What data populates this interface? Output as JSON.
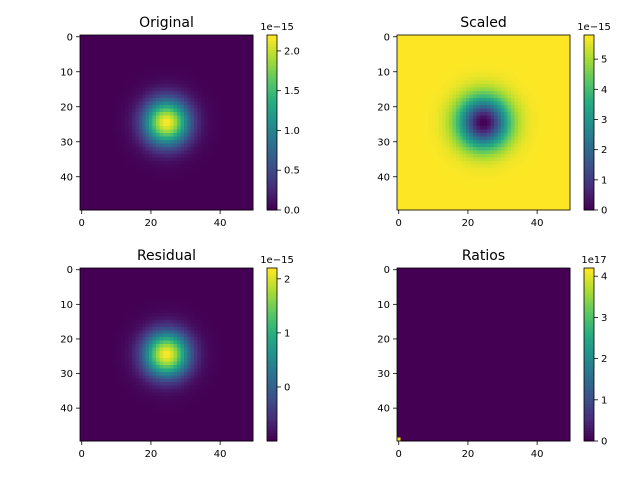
{
  "chart_data": [
    {
      "type": "heatmap",
      "title": "Original",
      "colormap": "viridis",
      "image": {
        "shape": [
          50,
          50
        ],
        "pattern": "gaussian",
        "center": [
          24.5,
          24.5
        ],
        "sigma": 4.5
      },
      "x_ticks": [
        0,
        20,
        40
      ],
      "y_ticks": [
        0,
        10,
        20,
        30,
        40
      ],
      "colorbar": {
        "vmin": 0.0,
        "vmax": 2.2,
        "ticks": [
          0.0,
          0.5,
          1.0,
          1.5,
          2.0
        ],
        "tick_labels": [
          "0.0",
          "0.5",
          "1.0",
          "1.5",
          "2.0"
        ],
        "offset_label": "1e−15"
      }
    },
    {
      "type": "heatmap",
      "title": "Scaled",
      "colormap": "viridis",
      "image": {
        "shape": [
          50,
          50
        ],
        "pattern": "inverted-gaussian",
        "center": [
          24.5,
          24.5
        ],
        "sigma": 5.0
      },
      "x_ticks": [
        0,
        20,
        40
      ],
      "y_ticks": [
        0,
        10,
        20,
        30,
        40
      ],
      "colorbar": {
        "vmin": 0.0,
        "vmax": 5.8,
        "ticks": [
          0,
          1,
          2,
          3,
          4,
          5
        ],
        "tick_labels": [
          "0",
          "1",
          "2",
          "3",
          "4",
          "5"
        ],
        "offset_label": "1e−15"
      }
    },
    {
      "type": "heatmap",
      "title": "Residual",
      "colormap": "viridis",
      "image": {
        "shape": [
          50,
          50
        ],
        "pattern": "gaussian",
        "center": [
          24.5,
          24.5
        ],
        "sigma": 4.5
      },
      "x_ticks": [
        0,
        20,
        40
      ],
      "y_ticks": [
        0,
        10,
        20,
        30,
        40
      ],
      "colorbar": {
        "vmin": -1.0,
        "vmax": 2.2,
        "ticks": [
          0,
          1,
          2
        ],
        "tick_labels": [
          "0",
          "1",
          "2"
        ],
        "offset_label": "1e−15"
      }
    },
    {
      "type": "heatmap",
      "title": "Ratios",
      "colormap": "viridis",
      "image": {
        "shape": [
          50,
          50
        ],
        "pattern": "corner-spike",
        "spike_cell": [
          0,
          49
        ]
      },
      "x_ticks": [
        0,
        20,
        40
      ],
      "y_ticks": [
        0,
        10,
        20,
        30,
        40
      ],
      "colorbar": {
        "vmin": 0.0,
        "vmax": 4.2,
        "ticks": [
          0,
          1,
          2,
          3,
          4
        ],
        "tick_labels": [
          "0",
          "1",
          "2",
          "3",
          "4"
        ],
        "offset_label": "1e17"
      }
    }
  ]
}
